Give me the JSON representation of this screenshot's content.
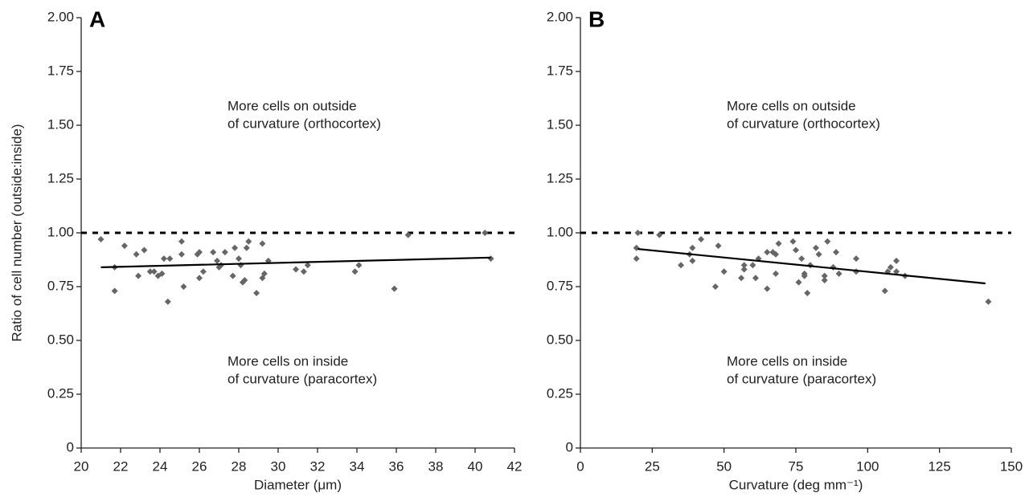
{
  "chart_data": [
    {
      "type": "scatter",
      "panel": "A",
      "ylabel": "Ratio of cell number (outside:inside)",
      "xlabel": "Diameter (μm)",
      "annotations": [
        [
          "More cells on outside",
          "of curvature (orthocortex)"
        ],
        [
          "More cells on inside",
          "of curvature (paracortex)"
        ]
      ],
      "color": "#666666",
      "x": [
        21.0,
        21.7,
        21.7,
        22.2,
        22.8,
        22.9,
        23.2,
        23.5,
        23.7,
        23.9,
        24.1,
        24.2,
        24.4,
        24.5,
        25.1,
        25.1,
        25.2,
        25.9,
        26.0,
        26.0,
        26.2,
        26.7,
        26.9,
        27.0,
        27.1,
        27.3,
        27.7,
        27.8,
        28.0,
        28.1,
        28.2,
        28.3,
        28.4,
        28.5,
        28.9,
        29.2,
        29.2,
        29.3,
        29.5,
        30.9,
        31.3,
        31.5,
        33.9,
        34.1,
        35.9,
        36.6,
        40.5,
        40.8
      ],
      "y": [
        0.97,
        0.84,
        0.73,
        0.94,
        0.9,
        0.8,
        0.92,
        0.82,
        0.82,
        0.8,
        0.81,
        0.88,
        0.68,
        0.88,
        0.96,
        0.9,
        0.75,
        0.9,
        0.91,
        0.79,
        0.82,
        0.91,
        0.87,
        0.84,
        0.85,
        0.91,
        0.8,
        0.93,
        0.88,
        0.85,
        0.77,
        0.78,
        0.93,
        0.96,
        0.72,
        0.95,
        0.79,
        0.81,
        0.87,
        0.83,
        0.82,
        0.85,
        0.82,
        0.85,
        0.74,
        0.99,
        1.0,
        0.88
      ],
      "trend": {
        "x": [
          21.0,
          40.8
        ],
        "y": [
          0.84,
          0.885
        ]
      },
      "hline": 1,
      "xlim": [
        20,
        42
      ],
      "xticks": [
        20,
        22,
        24,
        26,
        28,
        30,
        32,
        34,
        36,
        38,
        40,
        42
      ],
      "ylim": [
        0,
        2
      ],
      "yticks": [
        0,
        {
          "value": 0.25,
          "label": "0.25"
        },
        {
          "value": 0.5,
          "label": "0.50"
        },
        {
          "value": 0.75,
          "label": "0.75"
        },
        {
          "value": 1,
          "label": "1.00"
        },
        {
          "value": 1.25,
          "label": "1.25"
        },
        {
          "value": 1.5,
          "label": "1.50"
        },
        {
          "value": 1.75,
          "label": "1.75"
        },
        {
          "value": 2,
          "label": "2.00"
        }
      ]
    },
    {
      "type": "scatter",
      "panel": "B",
      "xlabel": "Curvature (deg mm⁻¹)",
      "annotations": [
        [
          "More cells on outside",
          "of curvature (orthocortex)"
        ],
        [
          "More cells on inside",
          "of curvature (paracortex)"
        ]
      ],
      "color": "#666666",
      "x": [
        19.5,
        19.5,
        20,
        27.5,
        35,
        38,
        39,
        39,
        42,
        47,
        48,
        50,
        56,
        57,
        57,
        60,
        61,
        62,
        65,
        65,
        67,
        68,
        68,
        69,
        74,
        75,
        76,
        77,
        78,
        78,
        79,
        80,
        82,
        83,
        85,
        85,
        86,
        88,
        89,
        90,
        96,
        96,
        106,
        107,
        108,
        110,
        110,
        113,
        142
      ],
      "y": [
        0.88,
        0.93,
        1.0,
        0.99,
        0.85,
        0.9,
        0.93,
        0.87,
        0.97,
        0.75,
        0.94,
        0.82,
        0.79,
        0.85,
        0.83,
        0.85,
        0.79,
        0.88,
        0.74,
        0.91,
        0.91,
        0.81,
        0.9,
        0.95,
        0.96,
        0.92,
        0.77,
        0.88,
        0.81,
        0.8,
        0.72,
        0.85,
        0.93,
        0.9,
        0.78,
        0.8,
        0.96,
        0.84,
        0.91,
        0.81,
        0.88,
        0.82,
        0.73,
        0.82,
        0.84,
        0.87,
        0.82,
        0.8,
        0.68
      ],
      "trend": {
        "x": [
          20,
          141
        ],
        "y": [
          0.925,
          0.765
        ]
      },
      "hline": 1,
      "xlim": [
        0,
        150
      ],
      "xticks": [
        0,
        25,
        50,
        75,
        100,
        125,
        150
      ],
      "ylim": [
        0,
        2
      ],
      "yticks": [
        0,
        {
          "value": 0.25,
          "label": "0.25"
        },
        {
          "value": 0.5,
          "label": "0.50"
        },
        {
          "value": 0.75,
          "label": "0.75"
        },
        {
          "value": 1,
          "label": "1.00"
        },
        {
          "value": 1.25,
          "label": "1.25"
        },
        {
          "value": 1.5,
          "label": "1.50"
        },
        {
          "value": 1.75,
          "label": "1.75"
        },
        {
          "value": 2,
          "label": "2.00"
        }
      ]
    }
  ]
}
